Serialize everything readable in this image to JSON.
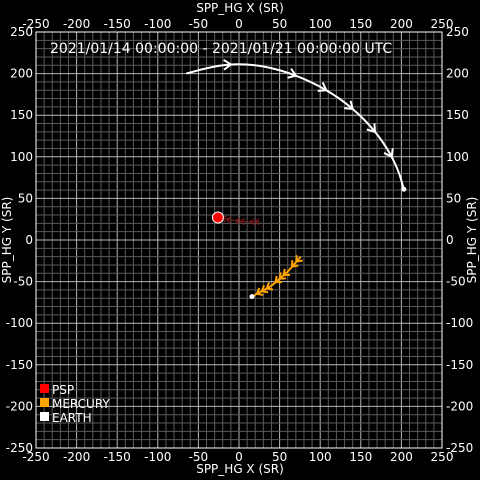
{
  "chart_data": {
    "type": "scatter",
    "title": "2021/01/14 00:00:00 - 2021/01/21 00:00:00 UTC",
    "xlabel": "SPP_HG X (SR)",
    "ylabel": "SPP_HG Y (SR)",
    "xlim": [
      -250,
      250
    ],
    "ylim": [
      -250,
      250
    ],
    "ticks": [
      -250,
      -200,
      -150,
      -100,
      -50,
      0,
      50,
      100,
      150,
      200,
      250
    ],
    "grid": true,
    "legend_placement": "bottom-left",
    "background": "#000000",
    "series": [
      {
        "name": "PSP",
        "color": "#ff0000",
        "trail_color": "#8b1a1a",
        "current": [
          -26,
          27
        ],
        "trail": [
          [
            -26,
            27
          ],
          [
            -10,
            24
          ],
          [
            8,
            22
          ],
          [
            26,
            22
          ]
        ]
      },
      {
        "name": "MERCURY",
        "color": "#ffa500",
        "trail_color": "#ffa500",
        "current": [
          16,
          -68
        ],
        "trail": [
          [
            16,
            -68
          ],
          [
            40,
            -55
          ],
          [
            60,
            -38
          ],
          [
            76,
            -20
          ]
        ]
      },
      {
        "name": "EARTH",
        "color": "#ffffff",
        "trail_color": "#ffffff",
        "current": [
          203,
          61
        ],
        "trail": [
          [
            -65,
            200
          ],
          [
            -30,
            210
          ],
          [
            10,
            212
          ],
          [
            50,
            205
          ],
          [
            90,
            190
          ],
          [
            125,
            170
          ],
          [
            155,
            145
          ],
          [
            180,
            115
          ],
          [
            196,
            85
          ],
          [
            203,
            61
          ]
        ]
      }
    ]
  }
}
